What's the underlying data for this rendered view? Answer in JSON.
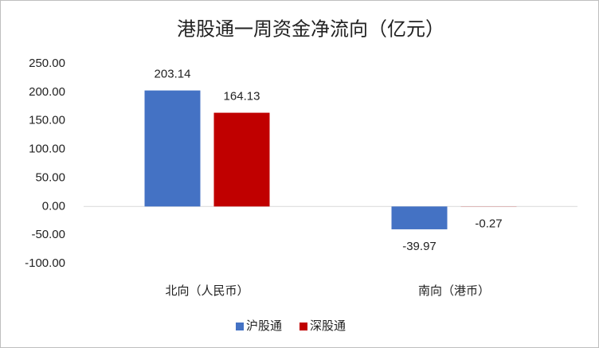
{
  "chart_data": {
    "type": "bar",
    "title": "港股通一周资金净流向（亿元）",
    "categories": [
      "北向（人民币）",
      "南向（港币）"
    ],
    "series": [
      {
        "name": "沪股通",
        "color": "#4472c4",
        "values": [
          203.14,
          -39.97
        ]
      },
      {
        "name": "深股通",
        "color": "#c00000",
        "values": [
          164.13,
          -0.27
        ]
      }
    ],
    "ylim": [
      -100,
      250
    ],
    "yticks": [
      {
        "value": 250,
        "label": "250.00"
      },
      {
        "value": 200,
        "label": "200.00"
      },
      {
        "value": 150,
        "label": "150.00"
      },
      {
        "value": 100,
        "label": "100.00"
      },
      {
        "value": 50,
        "label": "50.00"
      },
      {
        "value": 0,
        "label": "0.00"
      },
      {
        "value": -50,
        "label": "-50.00"
      },
      {
        "value": -100,
        "label": "-100.00"
      }
    ],
    "grid": false,
    "legend": "bottom"
  }
}
